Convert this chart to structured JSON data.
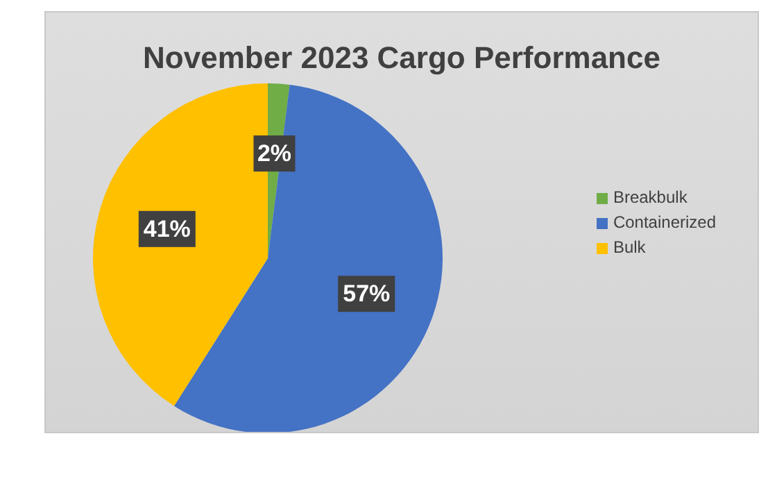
{
  "chart_data": {
    "type": "pie",
    "title": "November 2023 Cargo Performance",
    "categories": [
      "Breakbulk",
      "Containerized",
      "Bulk"
    ],
    "values": [
      2,
      57,
      41
    ],
    "colors": [
      "#70ad47",
      "#4472c4",
      "#ffc000"
    ],
    "value_labels": [
      "2%",
      "57%",
      "41%"
    ],
    "legend": "right"
  }
}
